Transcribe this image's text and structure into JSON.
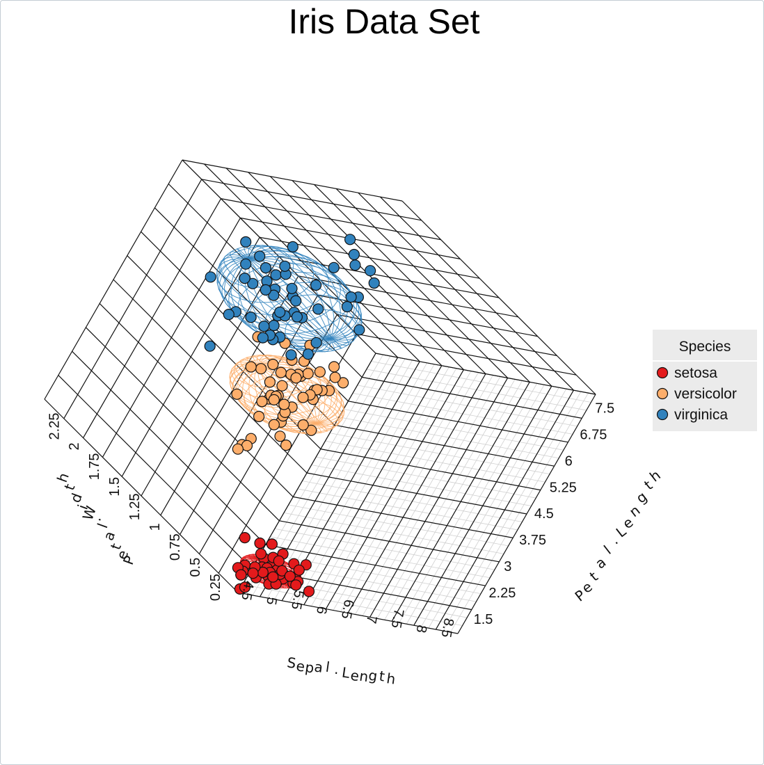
{
  "chart_data": {
    "type": "scatter",
    "title": "Iris Data Set",
    "xlabel": "Sepal.Length",
    "ylabel": "Petal.Length",
    "zlabel": "Petal.Width",
    "x_ticks": [
      "4.5",
      "5",
      "5.5",
      "6",
      "6.5",
      "7",
      "7.5",
      "8",
      "8.5"
    ],
    "y_ticks": [
      "1.5",
      "2.25",
      "3",
      "3.75",
      "4.5",
      "5.25",
      "6",
      "6.75",
      "7.5"
    ],
    "z_ticks": [
      "0.25",
      "0.5",
      "0.75",
      "1",
      "1.25",
      "1.5",
      "1.75",
      "2",
      "2.25"
    ],
    "xlim": [
      4.3,
      8.7
    ],
    "ylim": [
      1.0,
      7.8
    ],
    "zlim": [
      0.1,
      2.5
    ],
    "grid": true,
    "ellipses": true,
    "legend": {
      "title": "Species",
      "position": "right"
    },
    "series": [
      {
        "name": "setosa",
        "color": "#e31a1c",
        "points": [
          [
            5.1,
            1.4,
            0.2
          ],
          [
            4.9,
            1.4,
            0.2
          ],
          [
            4.7,
            1.3,
            0.2
          ],
          [
            4.6,
            1.5,
            0.2
          ],
          [
            5.0,
            1.4,
            0.2
          ],
          [
            5.4,
            1.7,
            0.4
          ],
          [
            4.6,
            1.4,
            0.3
          ],
          [
            5.0,
            1.5,
            0.2
          ],
          [
            4.4,
            1.4,
            0.2
          ],
          [
            4.9,
            1.5,
            0.1
          ],
          [
            5.4,
            1.5,
            0.2
          ],
          [
            4.8,
            1.6,
            0.2
          ],
          [
            4.8,
            1.4,
            0.1
          ],
          [
            4.3,
            1.1,
            0.1
          ],
          [
            5.8,
            1.2,
            0.2
          ],
          [
            5.7,
            1.5,
            0.4
          ],
          [
            5.4,
            1.3,
            0.4
          ],
          [
            5.1,
            1.4,
            0.3
          ],
          [
            5.7,
            1.7,
            0.3
          ],
          [
            5.1,
            1.5,
            0.3
          ],
          [
            5.4,
            1.7,
            0.2
          ],
          [
            5.1,
            1.5,
            0.4
          ],
          [
            4.6,
            1.0,
            0.2
          ],
          [
            5.1,
            1.7,
            0.5
          ],
          [
            4.8,
            1.9,
            0.2
          ],
          [
            5.0,
            1.6,
            0.2
          ],
          [
            5.0,
            1.6,
            0.4
          ],
          [
            5.2,
            1.5,
            0.2
          ],
          [
            5.2,
            1.4,
            0.2
          ],
          [
            4.7,
            1.6,
            0.2
          ],
          [
            4.8,
            1.6,
            0.2
          ],
          [
            5.4,
            1.5,
            0.4
          ],
          [
            5.2,
            1.5,
            0.1
          ],
          [
            5.5,
            1.4,
            0.2
          ],
          [
            4.9,
            1.5,
            0.2
          ],
          [
            5.0,
            1.2,
            0.2
          ],
          [
            5.5,
            1.3,
            0.2
          ],
          [
            4.9,
            1.4,
            0.1
          ],
          [
            4.4,
            1.3,
            0.2
          ],
          [
            5.1,
            1.5,
            0.2
          ],
          [
            5.0,
            1.3,
            0.3
          ],
          [
            4.5,
            1.3,
            0.3
          ],
          [
            4.4,
            1.3,
            0.2
          ],
          [
            5.0,
            1.6,
            0.6
          ],
          [
            5.1,
            1.9,
            0.4
          ],
          [
            4.8,
            1.4,
            0.3
          ],
          [
            5.1,
            1.6,
            0.2
          ],
          [
            4.6,
            1.4,
            0.2
          ],
          [
            5.3,
            1.5,
            0.2
          ],
          [
            5.0,
            1.4,
            0.2
          ]
        ],
        "ellipse": {
          "center": [
            5.006,
            1.462,
            0.246
          ],
          "radii": [
            0.55,
            0.28,
            0.16
          ]
        }
      },
      {
        "name": "versicolor",
        "color": "#fdae6b",
        "points": [
          [
            7.0,
            4.7,
            1.4
          ],
          [
            6.4,
            4.5,
            1.5
          ],
          [
            6.9,
            4.9,
            1.5
          ],
          [
            5.5,
            4.0,
            1.3
          ],
          [
            6.5,
            4.6,
            1.5
          ],
          [
            5.7,
            4.5,
            1.3
          ],
          [
            6.3,
            4.7,
            1.6
          ],
          [
            4.9,
            3.3,
            1.0
          ],
          [
            6.6,
            4.6,
            1.3
          ],
          [
            5.2,
            3.9,
            1.4
          ],
          [
            5.0,
            3.5,
            1.0
          ],
          [
            5.9,
            4.2,
            1.5
          ],
          [
            6.0,
            4.0,
            1.0
          ],
          [
            6.1,
            4.7,
            1.4
          ],
          [
            5.6,
            3.6,
            1.3
          ],
          [
            6.7,
            4.4,
            1.4
          ],
          [
            5.6,
            4.5,
            1.5
          ],
          [
            5.8,
            4.1,
            1.0
          ],
          [
            6.2,
            4.5,
            1.5
          ],
          [
            5.6,
            3.9,
            1.1
          ],
          [
            5.9,
            4.8,
            1.8
          ],
          [
            6.1,
            4.0,
            1.3
          ],
          [
            6.3,
            4.9,
            1.5
          ],
          [
            6.1,
            4.7,
            1.2
          ],
          [
            6.4,
            4.3,
            1.3
          ],
          [
            6.6,
            4.4,
            1.4
          ],
          [
            6.8,
            4.8,
            1.4
          ],
          [
            6.7,
            5.0,
            1.7
          ],
          [
            6.0,
            4.5,
            1.5
          ],
          [
            5.7,
            3.5,
            1.0
          ],
          [
            5.5,
            3.8,
            1.1
          ],
          [
            5.5,
            3.7,
            1.0
          ],
          [
            5.8,
            3.9,
            1.2
          ],
          [
            6.0,
            5.1,
            1.6
          ],
          [
            5.4,
            4.5,
            1.5
          ],
          [
            6.0,
            4.5,
            1.6
          ],
          [
            6.7,
            4.7,
            1.5
          ],
          [
            6.3,
            4.4,
            1.3
          ],
          [
            5.6,
            4.1,
            1.3
          ],
          [
            5.5,
            4.0,
            1.3
          ],
          [
            5.5,
            4.4,
            1.2
          ],
          [
            6.1,
            4.6,
            1.4
          ],
          [
            5.8,
            4.0,
            1.2
          ],
          [
            5.0,
            3.3,
            1.0
          ],
          [
            5.6,
            4.2,
            1.3
          ],
          [
            5.7,
            4.2,
            1.2
          ],
          [
            5.7,
            4.2,
            1.3
          ],
          [
            6.2,
            4.3,
            1.3
          ],
          [
            5.1,
            3.0,
            1.1
          ],
          [
            5.7,
            4.1,
            1.3
          ]
        ],
        "ellipse": {
          "center": [
            5.936,
            4.26,
            1.326
          ],
          "radii": [
            0.95,
            0.72,
            0.36
          ]
        }
      },
      {
        "name": "virginica",
        "color": "#3182bd",
        "points": [
          [
            6.3,
            6.0,
            2.5
          ],
          [
            5.8,
            5.1,
            1.9
          ],
          [
            7.1,
            5.9,
            2.1
          ],
          [
            6.3,
            5.6,
            1.8
          ],
          [
            6.5,
            5.8,
            2.2
          ],
          [
            7.6,
            6.6,
            2.1
          ],
          [
            4.9,
            4.5,
            1.7
          ],
          [
            7.3,
            6.3,
            1.8
          ],
          [
            6.7,
            5.8,
            1.8
          ],
          [
            7.2,
            6.1,
            2.5
          ],
          [
            6.5,
            5.1,
            2.0
          ],
          [
            6.4,
            5.3,
            1.9
          ],
          [
            6.8,
            5.5,
            2.1
          ],
          [
            5.7,
            5.0,
            2.0
          ],
          [
            5.8,
            5.1,
            2.4
          ],
          [
            6.4,
            5.3,
            2.3
          ],
          [
            6.5,
            5.5,
            1.8
          ],
          [
            7.7,
            6.7,
            2.2
          ],
          [
            7.7,
            6.9,
            2.3
          ],
          [
            6.0,
            5.0,
            1.5
          ],
          [
            6.9,
            5.7,
            2.3
          ],
          [
            5.6,
            4.9,
            2.0
          ],
          [
            7.7,
            6.7,
            2.0
          ],
          [
            6.3,
            4.9,
            1.8
          ],
          [
            6.7,
            5.7,
            2.1
          ],
          [
            7.2,
            6.0,
            1.8
          ],
          [
            6.2,
            4.8,
            1.8
          ],
          [
            6.1,
            4.9,
            1.8
          ],
          [
            6.4,
            5.6,
            2.1
          ],
          [
            7.2,
            5.8,
            1.6
          ],
          [
            7.4,
            6.1,
            1.9
          ],
          [
            7.9,
            6.4,
            2.0
          ],
          [
            6.4,
            5.6,
            2.2
          ],
          [
            6.3,
            5.1,
            1.5
          ],
          [
            6.1,
            5.6,
            1.4
          ],
          [
            7.7,
            6.1,
            2.3
          ],
          [
            6.3,
            5.6,
            2.4
          ],
          [
            6.4,
            5.5,
            1.8
          ],
          [
            6.0,
            4.8,
            1.8
          ],
          [
            6.9,
            5.4,
            2.1
          ],
          [
            6.7,
            5.6,
            2.4
          ],
          [
            6.9,
            5.1,
            2.3
          ],
          [
            5.8,
            5.1,
            1.9
          ],
          [
            6.8,
            5.9,
            2.3
          ],
          [
            6.7,
            5.7,
            2.5
          ],
          [
            6.7,
            5.2,
            2.3
          ],
          [
            6.3,
            5.0,
            1.9
          ],
          [
            6.5,
            5.2,
            2.0
          ],
          [
            6.2,
            5.4,
            2.3
          ],
          [
            5.9,
            5.1,
            1.8
          ]
        ],
        "ellipse": {
          "center": [
            6.588,
            5.552,
            2.026
          ],
          "radii": [
            1.15,
            0.95,
            0.5
          ]
        }
      }
    ]
  }
}
